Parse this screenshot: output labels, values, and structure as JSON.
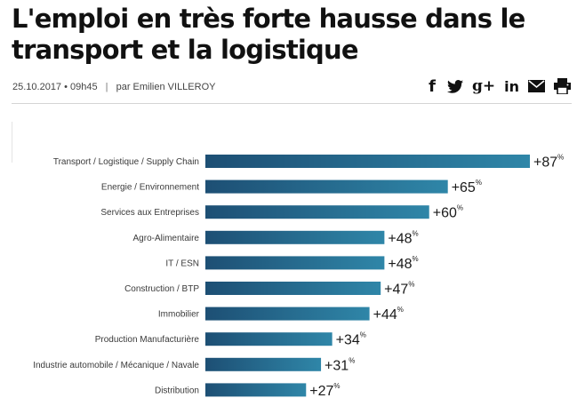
{
  "article": {
    "title": "L'emploi en très forte hausse dans le transport et la logistique",
    "date": "25.10.2017 • 09h45",
    "separator": "|",
    "author": "par Emilien VILLEROY"
  },
  "share": {
    "facebook_glyph": "f",
    "googleplus_glyph": "g+",
    "linkedin_glyph": "in",
    "icons": [
      "facebook-icon",
      "twitter-icon",
      "google-plus-icon",
      "linkedin-icon",
      "mail-icon",
      "print-icon"
    ]
  },
  "colors": {
    "bar_start": "#1d4f74",
    "bar_end": "#2f86a8"
  },
  "chart_data": {
    "type": "bar",
    "orientation": "horizontal",
    "categories": [
      "Transport / Logistique / Supply Chain",
      "Energie / Environnement",
      "Services aux Entreprises",
      "Agro-Alimentaire",
      "IT / ESN",
      "Construction / BTP",
      "Immobilier",
      "Production Manufacturière",
      "Industrie automobile / Mécanique / Navale",
      "Distribution"
    ],
    "values": [
      87,
      65,
      60,
      48,
      48,
      47,
      44,
      34,
      31,
      27
    ],
    "value_labels": [
      "+87",
      "+65",
      "+60",
      "+48",
      "+48",
      "+47",
      "+44",
      "+34",
      "+31",
      "+27"
    ],
    "unit": "%",
    "xlim": [
      0,
      87
    ],
    "grid": false,
    "legend": "none"
  }
}
